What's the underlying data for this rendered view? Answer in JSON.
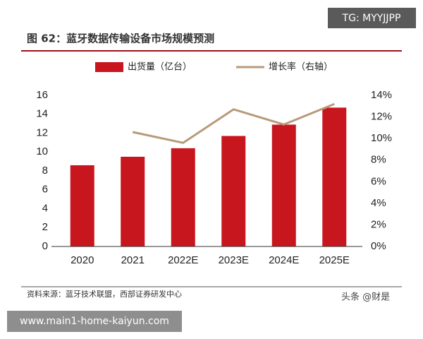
{
  "chart_data": {
    "type": "bar-line",
    "title": "图 62：蓝牙数据传输设备市场规模预测",
    "categories": [
      "2020",
      "2021",
      "2022E",
      "2023E",
      "2024E",
      "2025E"
    ],
    "series": [
      {
        "name": "出货量（亿台）",
        "type": "bar",
        "color": "#c8161e",
        "values": [
          8.6,
          9.5,
          10.4,
          11.7,
          12.9,
          14.7
        ]
      },
      {
        "name": "增长率（右轴）",
        "type": "line",
        "axis": "y2",
        "color": "#b89a7a",
        "values": [
          null,
          10.6,
          9.6,
          12.7,
          11.3,
          13.2
        ]
      }
    ],
    "ylim": [
      0,
      16
    ],
    "yticks": [
      0,
      2,
      4,
      6,
      8,
      10,
      12,
      14,
      16
    ],
    "y2lim": [
      0,
      14
    ],
    "y2ticks": [
      {
        "value": 0,
        "label": "0%"
      },
      {
        "value": 2,
        "label": "2%"
      },
      {
        "value": 4,
        "label": "4%"
      },
      {
        "value": 6,
        "label": "6%"
      },
      {
        "value": 8,
        "label": "8%"
      },
      {
        "value": 10,
        "label": "10%"
      },
      {
        "value": 12,
        "label": "12%"
      },
      {
        "value": 14,
        "label": "14%"
      }
    ],
    "grid": false,
    "source": "资料来源：蓝牙技术联盟，西部证券研发中心"
  },
  "overlays": {
    "top_right": "TG: MYYJJPP",
    "credit": "头条 @财是",
    "bottom_left": "www.main1-home-kaiyun.com"
  }
}
